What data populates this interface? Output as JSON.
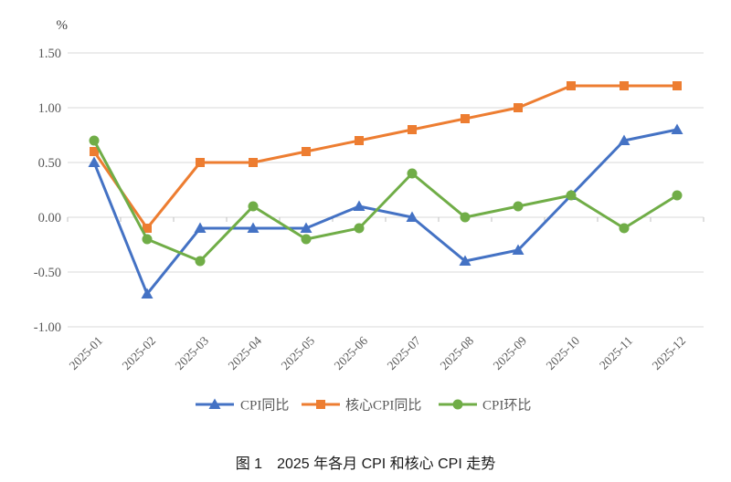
{
  "figure": {
    "caption": "图 1　2025 年各月 CPI 和核心 CPI 走势"
  },
  "chart_data": {
    "type": "line",
    "title": "",
    "unit_label": "%",
    "categories": [
      "2025-01",
      "2025-02",
      "2025-03",
      "2025-04",
      "2025-05",
      "2025-06",
      "2025-07",
      "2025-08",
      "2025-09",
      "2025-10",
      "2025-11",
      "2025-12"
    ],
    "series": [
      {
        "id": "cpi-yoy",
        "name": "CPI同比",
        "color": "#4472C4",
        "marker": "triangle",
        "values": [
          0.5,
          -0.7,
          -0.1,
          -0.1,
          -0.1,
          0.1,
          0.0,
          -0.4,
          -0.3,
          0.2,
          0.7,
          0.8
        ]
      },
      {
        "id": "core-cpi-yoy",
        "name": "核心CPI同比",
        "color": "#ED7D31",
        "marker": "square",
        "values": [
          0.6,
          -0.1,
          0.5,
          0.5,
          0.6,
          0.7,
          0.8,
          0.9,
          1.0,
          1.2,
          1.2,
          1.2
        ]
      },
      {
        "id": "cpi-mom",
        "name": "CPI环比",
        "color": "#70AD47",
        "marker": "circle",
        "values": [
          0.7,
          -0.2,
          -0.4,
          0.1,
          -0.2,
          -0.1,
          0.4,
          0.0,
          0.1,
          0.2,
          -0.1,
          0.2
        ]
      }
    ],
    "y_axis": {
      "ticks": [
        {
          "label": "1.50",
          "value": 1.5
        },
        {
          "label": "1.00",
          "value": 1.0
        },
        {
          "label": "0.50",
          "value": 0.5
        },
        {
          "label": "0.00",
          "value": 0.0
        },
        {
          "label": "-0.50",
          "value": -0.5
        },
        {
          "label": "-1.00",
          "value": -1.0
        }
      ],
      "range": [
        -1.0,
        1.5
      ]
    },
    "grid": true,
    "legend_position": "bottom",
    "colors": {
      "gridline": "#D9D9D9",
      "axis_tick": "#BFBFBF",
      "background": "#FFFFFF"
    }
  }
}
